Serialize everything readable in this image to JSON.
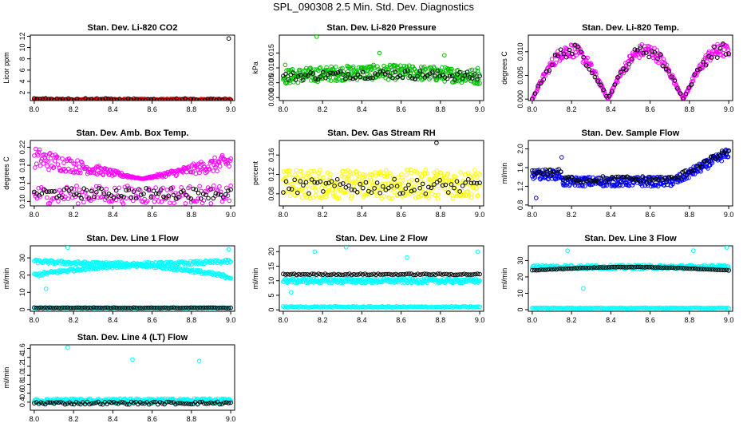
{
  "title": "SPL_090308  2.5 Min. Std. Dev. Diagnostics",
  "colors": {
    "black": "#000000",
    "red": "#e00000",
    "green": "#00c000",
    "magenta": "#ff00ff",
    "yellow": "#ffff00",
    "blue": "#0000ff",
    "cyan": "#00ffff"
  },
  "chart_data": [
    {
      "type": "scatter",
      "title": "Stan. Dev. Li-820 CO2",
      "ylabel": "Licor ppm",
      "xlim": [
        7.98,
        9.02
      ],
      "ylim": [
        0.6,
        12.2
      ],
      "xticks": [
        8.0,
        8.2,
        8.4,
        8.6,
        8.8,
        9.0
      ],
      "xtick_labels": [
        "8.0",
        "8.2",
        "8.4",
        "8.6",
        "8.8",
        "9.0"
      ],
      "yticks": [
        2,
        4,
        6,
        8,
        10,
        12
      ],
      "ytick_labels": [
        "2",
        "4",
        "6",
        "8",
        "10",
        "12"
      ],
      "series": [
        {
          "name": "main",
          "color": "red",
          "pattern": "flat",
          "base": 0.75,
          "amp": 0.15,
          "n": 320
        },
        {
          "name": "reference",
          "color": "black",
          "pattern": "flat",
          "base": 0.8,
          "amp": 0.2,
          "n": 70
        }
      ],
      "outliers": [
        {
          "x": 8.99,
          "y": 11.6,
          "color": "black"
        }
      ]
    },
    {
      "type": "scatter",
      "title": "Stan. Dev. Li-820 Pressure",
      "ylabel": "kPa",
      "xlim": [
        7.98,
        9.02
      ],
      "ylim": [
        -0.001,
        0.021
      ],
      "xticks": [
        8.0,
        8.2,
        8.4,
        8.6,
        8.8,
        9.0
      ],
      "xtick_labels": [
        "8.0",
        "8.2",
        "8.4",
        "8.6",
        "8.8",
        "9.0"
      ],
      "yticks": [
        0.0,
        0.005,
        0.01,
        0.015
      ],
      "ytick_labels": [
        "0.000",
        "0.005",
        "0.010",
        "0.015"
      ],
      "series": [
        {
          "name": "main",
          "color": "green",
          "pattern": "pressure",
          "base": 0.007,
          "amp": 0.0025,
          "n": 360
        },
        {
          "name": "reference",
          "color": "black",
          "pattern": "pressure",
          "base": 0.007,
          "amp": 0.0015,
          "n": 80
        }
      ],
      "outliers": [
        {
          "x": 8.01,
          "y": 0.011,
          "color": "green"
        },
        {
          "x": 8.17,
          "y": 0.0205,
          "color": "green"
        },
        {
          "x": 8.49,
          "y": 0.015,
          "color": "green"
        },
        {
          "x": 8.82,
          "y": 0.0142,
          "color": "green"
        },
        {
          "x": 8.99,
          "y": 0.0099,
          "color": "green"
        }
      ]
    },
    {
      "type": "scatter",
      "title": "Stan. Dev. Li-820 Temp.",
      "ylabel": "degrees C",
      "xlim": [
        7.98,
        9.02
      ],
      "ylim": [
        -0.0003,
        0.0135
      ],
      "xticks": [
        8.0,
        8.2,
        8.4,
        8.6,
        8.8,
        9.0
      ],
      "xtick_labels": [
        "8.0",
        "8.2",
        "8.4",
        "8.6",
        "8.8",
        "9.0"
      ],
      "yticks": [
        0.0,
        0.005,
        0.01
      ],
      "ytick_labels": [
        "0.000",
        "0.005",
        "0.010"
      ],
      "series": [
        {
          "name": "main",
          "color": "magenta",
          "pattern": "temp",
          "base": 0.0,
          "amp": 0.0118,
          "n": 300
        },
        {
          "name": "reference",
          "color": "black",
          "pattern": "temp",
          "base": 0.0,
          "amp": 0.0118,
          "n": 70
        }
      ],
      "outliers": []
    },
    {
      "type": "scatter",
      "title": "Stan. Dev. Amb. Box Temp.",
      "ylabel": "degrees C",
      "xlim": [
        7.98,
        9.02
      ],
      "ylim": [
        0.09,
        0.235
      ],
      "xticks": [
        8.0,
        8.2,
        8.4,
        8.6,
        8.8,
        9.0
      ],
      "xtick_labels": [
        "8.0",
        "8.2",
        "8.4",
        "8.6",
        "8.8",
        "9.0"
      ],
      "yticks": [
        0.1,
        0.14,
        0.18,
        0.22
      ],
      "ytick_labels": [
        "0.10",
        "0.14",
        "0.18",
        "0.22"
      ],
      "series": [
        {
          "name": "main-upper",
          "color": "magenta",
          "pattern": "vshape",
          "base": 0.15,
          "amp": 0.055,
          "n": 260
        },
        {
          "name": "main-lower",
          "color": "magenta",
          "pattern": "flat",
          "base": 0.115,
          "amp": 0.02,
          "n": 140
        },
        {
          "name": "reference",
          "color": "black",
          "pattern": "flat",
          "base": 0.118,
          "amp": 0.012,
          "n": 80
        }
      ],
      "outliers": []
    },
    {
      "type": "scatter",
      "title": "Stan. Dev. Gas Stream RH",
      "ylabel": "percent",
      "xlim": [
        7.98,
        9.02
      ],
      "ylim": [
        0.055,
        0.19
      ],
      "xticks": [
        8.0,
        8.2,
        8.4,
        8.6,
        8.8,
        9.0
      ],
      "xtick_labels": [
        "8.0",
        "8.2",
        "8.4",
        "8.6",
        "8.8",
        "9.0"
      ],
      "yticks": [
        0.08,
        0.12,
        0.16
      ],
      "ytick_labels": [
        "0.08",
        "0.12",
        "0.16"
      ],
      "series": [
        {
          "name": "main",
          "color": "yellow",
          "pattern": "flat",
          "base": 0.1,
          "amp": 0.03,
          "n": 360
        },
        {
          "name": "reference",
          "color": "black",
          "pattern": "flat",
          "base": 0.095,
          "amp": 0.015,
          "n": 70
        }
      ],
      "outliers": [
        {
          "x": 8.78,
          "y": 0.185,
          "color": "black"
        }
      ]
    },
    {
      "type": "scatter",
      "title": "Stan. Dev. Sample Flow",
      "ylabel": "ml/min",
      "xlim": [
        7.98,
        9.02
      ],
      "ylim": [
        0.78,
        2.18
      ],
      "xticks": [
        8.0,
        8.2,
        8.4,
        8.6,
        8.8,
        9.0
      ],
      "xtick_labels": [
        "8.0",
        "8.2",
        "8.4",
        "8.6",
        "8.8",
        "9.0"
      ],
      "yticks": [
        0.8,
        1.2,
        1.6,
        2.0
      ],
      "ytick_labels": [
        "0.8",
        "1.2",
        "1.6",
        "2.0"
      ],
      "series": [
        {
          "name": "main",
          "color": "blue",
          "pattern": "flow",
          "base": 1.3,
          "amp": 0.1,
          "n": 360
        },
        {
          "name": "reference",
          "color": "black",
          "pattern": "flow",
          "base": 1.35,
          "amp": 0.07,
          "n": 90
        }
      ],
      "outliers": [
        {
          "x": 8.15,
          "y": 1.82,
          "color": "blue"
        },
        {
          "x": 8.02,
          "y": 0.95,
          "color": "blue"
        }
      ]
    },
    {
      "type": "scatter",
      "title": "Stan. Dev. Line 1 Flow",
      "ylabel": "ml/min",
      "xlim": [
        7.98,
        9.02
      ],
      "ylim": [
        -1,
        37
      ],
      "xticks": [
        8.0,
        8.2,
        8.4,
        8.6,
        8.8,
        9.0
      ],
      "xtick_labels": [
        "8.0",
        "8.2",
        "8.4",
        "8.6",
        "8.8",
        "9.0"
      ],
      "yticks": [
        0,
        10,
        20,
        30
      ],
      "ytick_labels": [
        "0",
        "10",
        "20",
        "30"
      ],
      "series": [
        {
          "name": "main-upper",
          "color": "cyan",
          "pattern": "cross-up",
          "base": 28,
          "amp": 1,
          "n": 220
        },
        {
          "name": "main-lower",
          "color": "cyan",
          "pattern": "cross-down",
          "base": 20,
          "amp": 1,
          "n": 220
        },
        {
          "name": "main-base",
          "color": "cyan",
          "pattern": "flat",
          "base": 1,
          "amp": 0.2,
          "n": 140
        },
        {
          "name": "reference",
          "color": "black",
          "pattern": "flat",
          "base": 1,
          "amp": 0.2,
          "n": 90
        }
      ],
      "outliers": [
        {
          "x": 8.17,
          "y": 36,
          "color": "cyan"
        },
        {
          "x": 8.06,
          "y": 12,
          "color": "cyan"
        },
        {
          "x": 8.99,
          "y": 35,
          "color": "cyan"
        }
      ]
    },
    {
      "type": "scatter",
      "title": "Stan. Dev. Line 2 Flow",
      "ylabel": "ml/min",
      "xlim": [
        7.98,
        9.02
      ],
      "ylim": [
        -0.5,
        22
      ],
      "xticks": [
        8.0,
        8.2,
        8.4,
        8.6,
        8.8,
        9.0
      ],
      "xtick_labels": [
        "8.0",
        "8.2",
        "8.4",
        "8.6",
        "8.8",
        "9.0"
      ],
      "yticks": [
        0,
        5,
        10,
        15,
        20
      ],
      "ytick_labels": [
        "0",
        "5",
        "10",
        "15",
        "20"
      ],
      "series": [
        {
          "name": "main",
          "color": "cyan",
          "pattern": "flat",
          "base": 10,
          "amp": 0.8,
          "n": 300
        },
        {
          "name": "main-base",
          "color": "cyan",
          "pattern": "flat",
          "base": 1,
          "amp": 0.2,
          "n": 140
        },
        {
          "name": "reference",
          "color": "black",
          "pattern": "flat",
          "base": 12.2,
          "amp": 0.2,
          "n": 90
        }
      ],
      "outliers": [
        {
          "x": 8.16,
          "y": 20,
          "color": "cyan"
        },
        {
          "x": 8.32,
          "y": 21.5,
          "color": "cyan"
        },
        {
          "x": 8.63,
          "y": 18,
          "color": "cyan"
        },
        {
          "x": 8.99,
          "y": 20,
          "color": "cyan"
        },
        {
          "x": 8.04,
          "y": 6,
          "color": "cyan"
        }
      ]
    },
    {
      "type": "scatter",
      "title": "Stan. Dev. Line 3 Flow",
      "ylabel": "ml/min",
      "xlim": [
        7.98,
        9.02
      ],
      "ylim": [
        -1,
        39
      ],
      "xticks": [
        8.0,
        8.2,
        8.4,
        8.6,
        8.8,
        9.0
      ],
      "xtick_labels": [
        "8.0",
        "8.2",
        "8.4",
        "8.6",
        "8.8",
        "9.0"
      ],
      "yticks": [
        0,
        10,
        20,
        30
      ],
      "ytick_labels": [
        "0",
        "10",
        "20",
        "30"
      ],
      "series": [
        {
          "name": "main",
          "color": "cyan",
          "pattern": "flat",
          "base": 26,
          "amp": 1.2,
          "n": 300
        },
        {
          "name": "main-base",
          "color": "cyan",
          "pattern": "flat",
          "base": 1,
          "amp": 0.2,
          "n": 140
        },
        {
          "name": "reference",
          "color": "black",
          "pattern": "arch",
          "base": 24,
          "amp": 2,
          "n": 90
        }
      ],
      "outliers": [
        {
          "x": 8.26,
          "y": 13,
          "color": "cyan"
        },
        {
          "x": 8.18,
          "y": 36,
          "color": "cyan"
        },
        {
          "x": 8.82,
          "y": 36,
          "color": "cyan"
        },
        {
          "x": 8.99,
          "y": 38,
          "color": "cyan"
        }
      ]
    },
    {
      "type": "scatter",
      "title": "Stan. Dev. Line 4 (LT) Flow",
      "ylabel": "ml/min",
      "xlim": [
        7.98,
        9.02
      ],
      "ylim": [
        0.22,
        1.68
      ],
      "xticks": [
        8.0,
        8.2,
        8.4,
        8.6,
        8.8,
        9.0
      ],
      "xtick_labels": [
        "8.0",
        "8.2",
        "8.4",
        "8.6",
        "8.8",
        "9.0"
      ],
      "yticks": [
        0.4,
        0.6,
        0.8,
        1.0,
        1.2,
        1.4,
        1.6
      ],
      "ytick_labels": [
        "0.4",
        "0.6",
        "0.8",
        "1.0",
        "1.2",
        "1.4",
        "1.6"
      ],
      "series": [
        {
          "name": "main",
          "color": "cyan",
          "pattern": "flat",
          "base": 0.43,
          "amp": 0.05,
          "n": 320
        },
        {
          "name": "reference",
          "color": "black",
          "pattern": "flat",
          "base": 0.38,
          "amp": 0.03,
          "n": 90
        }
      ],
      "outliers": [
        {
          "x": 8.17,
          "y": 1.62,
          "color": "cyan"
        },
        {
          "x": 8.5,
          "y": 1.35,
          "color": "cyan"
        },
        {
          "x": 8.84,
          "y": 1.32,
          "color": "cyan"
        }
      ]
    }
  ]
}
